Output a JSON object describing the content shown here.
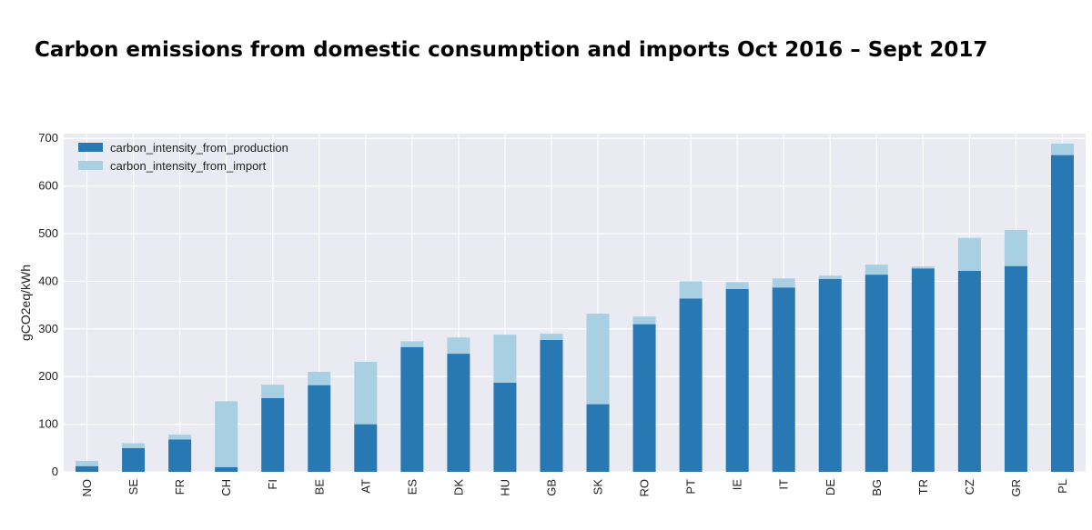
{
  "title": "Carbon emissions from domestic consumption and imports Oct 2016 – Sept 2017",
  "colors": {
    "production": "#2878b4",
    "import": "#a8cfe2",
    "plot_bg": "#eaeaf2",
    "grid": "#ffffff"
  },
  "chart_data": {
    "type": "bar",
    "stacked": true,
    "ylabel": "gCO2eq/kWh",
    "ylim": [
      0,
      710
    ],
    "yticks": [
      0,
      100,
      200,
      300,
      400,
      500,
      600,
      700
    ],
    "legend": "top-left",
    "grid": true,
    "categories": [
      "NO",
      "SE",
      "FR",
      "CH",
      "FI",
      "BE",
      "AT",
      "ES",
      "DK",
      "HU",
      "GB",
      "SK",
      "RO",
      "PT",
      "IE",
      "IT",
      "DE",
      "BG",
      "TR",
      "CZ",
      "GR",
      "PL"
    ],
    "series": [
      {
        "name": "carbon_intensity_from_production",
        "values": [
          12,
          50,
          68,
          10,
          155,
          182,
          100,
          262,
          248,
          187,
          277,
          142,
          310,
          364,
          384,
          387,
          405,
          414,
          427,
          422,
          432,
          665
        ]
      },
      {
        "name": "carbon_intensity_from_import",
        "values": [
          11,
          10,
          10,
          138,
          28,
          28,
          131,
          12,
          34,
          101,
          13,
          190,
          16,
          36,
          14,
          19,
          7,
          21,
          4,
          69,
          76,
          24
        ]
      }
    ]
  }
}
